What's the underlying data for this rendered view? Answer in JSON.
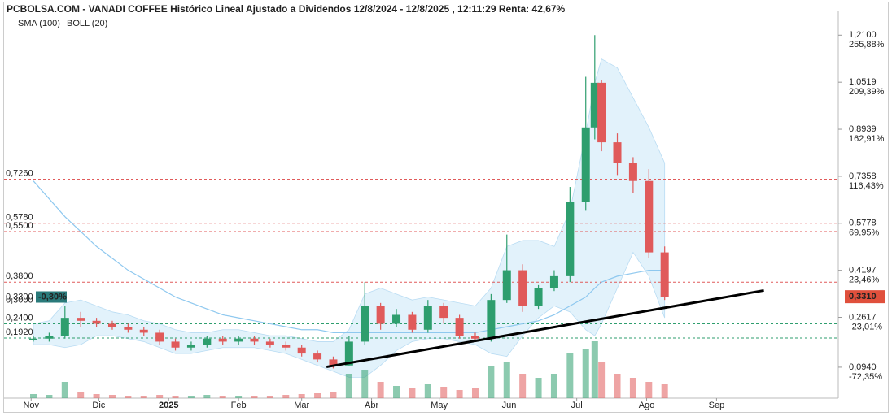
{
  "chart_data": {
    "type": "candlestick",
    "title": "PCBOLSA.COM - VANADI COFFEE Histórico Lineal Ajustado a Dividendos 12/8/2024 - 12/8/2025 , 12:11:29 Renta: 42,67%",
    "legend": [
      "SMA (100)",
      "BOLL (20)"
    ],
    "x": [
      1,
      8,
      15,
      22,
      29,
      36,
      43,
      50,
      57,
      64,
      71,
      78,
      85,
      92,
      99,
      106,
      113,
      120,
      127,
      134,
      141,
      148,
      155,
      162,
      169,
      176,
      183,
      190,
      197,
      204,
      211,
      218,
      225,
      232,
      239,
      246,
      250,
      253,
      260,
      267,
      274,
      281
    ],
    "open": [
      0.19,
      0.19,
      0.2,
      0.26,
      0.25,
      0.24,
      0.23,
      0.22,
      0.21,
      0.18,
      0.16,
      0.17,
      0.19,
      0.18,
      0.19,
      0.18,
      0.17,
      0.16,
      0.14,
      0.12,
      0.1,
      0.18,
      0.3,
      0.24,
      0.27,
      0.22,
      0.3,
      0.26,
      0.2,
      0.19,
      0.32,
      0.42,
      0.3,
      0.36,
      0.4,
      0.65,
      0.9,
      1.05,
      0.85,
      0.78,
      0.72,
      0.48
    ],
    "high": [
      0.2,
      0.21,
      0.3,
      0.28,
      0.26,
      0.25,
      0.24,
      0.23,
      0.22,
      0.19,
      0.18,
      0.2,
      0.2,
      0.2,
      0.2,
      0.19,
      0.18,
      0.17,
      0.15,
      0.13,
      0.2,
      0.38,
      0.31,
      0.29,
      0.28,
      0.32,
      0.31,
      0.27,
      0.21,
      0.34,
      0.54,
      0.44,
      0.37,
      0.42,
      0.7,
      1.07,
      1.21,
      1.06,
      0.88,
      0.8,
      0.76,
      0.5
    ],
    "low": [
      0.18,
      0.18,
      0.19,
      0.23,
      0.23,
      0.22,
      0.21,
      0.2,
      0.17,
      0.15,
      0.15,
      0.16,
      0.17,
      0.17,
      0.17,
      0.16,
      0.15,
      0.13,
      0.11,
      0.09,
      0.1,
      0.17,
      0.22,
      0.23,
      0.21,
      0.21,
      0.24,
      0.19,
      0.18,
      0.18,
      0.31,
      0.28,
      0.29,
      0.35,
      0.38,
      0.62,
      0.86,
      0.82,
      0.74,
      0.68,
      0.46,
      0.32
    ],
    "close": [
      0.19,
      0.2,
      0.26,
      0.25,
      0.24,
      0.23,
      0.22,
      0.21,
      0.18,
      0.16,
      0.17,
      0.19,
      0.18,
      0.19,
      0.18,
      0.17,
      0.16,
      0.14,
      0.12,
      0.1,
      0.18,
      0.3,
      0.24,
      0.27,
      0.22,
      0.3,
      0.26,
      0.2,
      0.19,
      0.32,
      0.42,
      0.3,
      0.36,
      0.4,
      0.65,
      0.9,
      1.05,
      0.85,
      0.78,
      0.72,
      0.48,
      0.331
    ],
    "up_color": "#2e9e6e",
    "down_color": "#e05a5a",
    "volume": [
      5,
      4,
      20,
      8,
      5,
      4,
      3,
      3,
      4,
      3,
      3,
      4,
      3,
      3,
      3,
      3,
      4,
      5,
      6,
      8,
      30,
      35,
      20,
      15,
      12,
      18,
      14,
      10,
      12,
      40,
      45,
      30,
      25,
      30,
      55,
      60,
      70,
      45,
      30,
      25,
      20,
      18
    ],
    "volume_ylim": [
      0,
      80
    ],
    "sma": {
      "color": "#8ec8ef",
      "values": [
        0.72,
        0.66,
        0.6,
        0.55,
        0.5,
        0.46,
        0.42,
        0.39,
        0.36,
        0.33,
        0.31,
        0.29,
        0.27,
        0.26,
        0.25,
        0.24,
        0.23,
        0.22,
        0.22,
        0.21,
        0.21,
        0.21,
        0.21,
        0.21,
        0.21,
        0.21,
        0.21,
        0.21,
        0.21,
        0.22,
        0.23,
        0.24,
        0.25,
        0.27,
        0.3,
        0.33,
        0.36,
        0.38,
        0.4,
        0.41,
        0.42,
        0.42
      ]
    },
    "bollinger": {
      "color": "#d6ecfa",
      "upper": [
        0.24,
        0.25,
        0.31,
        0.32,
        0.3,
        0.28,
        0.27,
        0.25,
        0.24,
        0.22,
        0.21,
        0.21,
        0.22,
        0.22,
        0.21,
        0.2,
        0.2,
        0.19,
        0.18,
        0.18,
        0.22,
        0.34,
        0.36,
        0.34,
        0.32,
        0.33,
        0.32,
        0.31,
        0.3,
        0.36,
        0.5,
        0.52,
        0.52,
        0.5,
        0.62,
        0.88,
        1.05,
        1.13,
        1.1,
        1.0,
        0.9,
        0.78
      ],
      "lower": [
        0.17,
        0.17,
        0.16,
        0.17,
        0.2,
        0.2,
        0.19,
        0.18,
        0.16,
        0.14,
        0.14,
        0.15,
        0.16,
        0.16,
        0.16,
        0.15,
        0.14,
        0.12,
        0.1,
        0.08,
        0.06,
        0.06,
        0.1,
        0.15,
        0.18,
        0.19,
        0.19,
        0.18,
        0.17,
        0.14,
        0.13,
        0.2,
        0.26,
        0.3,
        0.28,
        0.22,
        0.2,
        0.24,
        0.36,
        0.48,
        0.4,
        0.26
      ]
    },
    "trendline": {
      "x": [
        131,
        325
      ],
      "y": [
        0.095,
        0.352
      ]
    },
    "hlines": [
      {
        "value": 0.726,
        "label": "0,7260",
        "color": "#e05a5a"
      },
      {
        "value": 0.578,
        "label": "0,5780",
        "color": "#e05a5a"
      },
      {
        "value": 0.55,
        "label": "0,5500",
        "color": "#e05a5a"
      },
      {
        "value": 0.38,
        "label": "0,3800",
        "color": "#e05a5a"
      },
      {
        "value": 0.33,
        "label": "0,3300",
        "color": "#2a7a7a",
        "change": "-0,30%"
      },
      {
        "value": 0.3,
        "label": "0,3000",
        "color": "#2e9e6e"
      },
      {
        "value": 0.24,
        "label": "0,2400",
        "color": "#2e9e6e"
      },
      {
        "value": 0.192,
        "label": "0,1920",
        "color": "#2e9e6e"
      }
    ],
    "last_price": {
      "value": 0.331,
      "label": "0,3310"
    },
    "xlim": [
      -12,
      358
    ],
    "xticks": [
      {
        "value": 0,
        "label": "Nov"
      },
      {
        "value": 30,
        "label": "Dic"
      },
      {
        "value": 61,
        "label": "2025"
      },
      {
        "value": 92,
        "label": "Feb"
      },
      {
        "value": 120,
        "label": "Mar"
      },
      {
        "value": 151,
        "label": "Abr"
      },
      {
        "value": 181,
        "label": "May"
      },
      {
        "value": 212,
        "label": "Jun"
      },
      {
        "value": 242,
        "label": "Jul"
      },
      {
        "value": 273,
        "label": "Ago"
      },
      {
        "value": 304,
        "label": "Sep"
      }
    ],
    "ylim": [
      -0.01,
      1.29
    ],
    "yticks": [
      {
        "value": 1.21,
        "label": "1,2100"
      },
      {
        "value": 1.0519,
        "label": "1,0519"
      },
      {
        "value": 0.8939,
        "label": "0,8939"
      },
      {
        "value": 0.7358,
        "label": "0,7358"
      },
      {
        "value": 0.5778,
        "label": "0,5778"
      },
      {
        "value": 0.4197,
        "label": "0,4197"
      },
      {
        "value": 0.2617,
        "label": "0,2617"
      },
      {
        "value": 0.094,
        "label": "0,0940"
      }
    ],
    "ytick_changes": [
      "255,88%",
      "209,39%",
      "162,91%",
      "116,43%",
      "69,95%",
      "23,46%",
      "-23,01%",
      "-72,35%"
    ]
  }
}
